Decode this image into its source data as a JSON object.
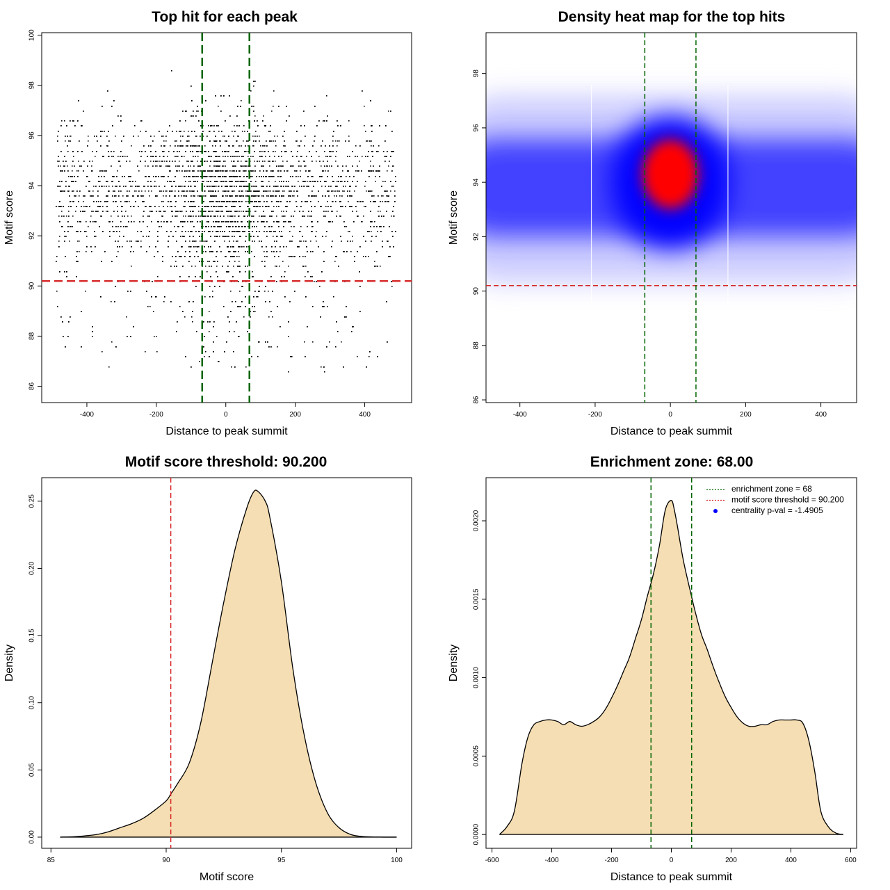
{
  "chart_data": [
    {
      "id": "scatter",
      "type": "scatter",
      "title": "Top hit for each peak",
      "xlabel": "Distance to peak summit",
      "ylabel": "Motif score",
      "xlim": [
        -530,
        535
      ],
      "ylim": [
        85.35,
        100.1
      ],
      "xticks": [
        -400,
        -200,
        0,
        200,
        400
      ],
      "yticks": [
        86,
        88,
        90,
        92,
        94,
        96,
        98,
        100
      ],
      "points_description_values": {
        "x_range": [
          -490,
          490
        ],
        "y_range": [
          86.6,
          99.5
        ],
        "y_mode": 93.8,
        "center_x": 0
      },
      "threshold_line": 90.2,
      "zone_lines": [
        -68,
        68
      ],
      "grid": false,
      "threshold_color": "#d62728",
      "zone_color": "#006400"
    },
    {
      "id": "heatmap",
      "type": "heatmap",
      "title": "Density heat map for the top hits",
      "xlabel": "Distance to peak summit",
      "ylabel": "Motif score",
      "xlim": [
        -490,
        495
      ],
      "ylim": [
        85.9,
        99.5
      ],
      "xticks": [
        -400,
        -200,
        0,
        200,
        400
      ],
      "yticks": [
        86,
        88,
        90,
        92,
        94,
        96,
        98
      ],
      "hotspot": {
        "x": 0,
        "y": 94.3
      },
      "threshold_line": 90.2,
      "zone_lines": [
        -68,
        68
      ],
      "low_color": "#ffffff",
      "mid_color": "#0000ff",
      "high_color": "#ff0000"
    },
    {
      "id": "score_density",
      "type": "area",
      "title": "Motif score threshold: 90.200",
      "xlabel": "Motif score",
      "ylabel": "Density",
      "xlim": [
        84.6,
        100.65
      ],
      "ylim": [
        -0.0083,
        0.2675
      ],
      "xticks": [
        85,
        90,
        95,
        100
      ],
      "yticks": [
        0.0,
        0.05,
        0.1,
        0.15,
        0.2,
        0.25
      ],
      "ytick_labels": [
        "0.00",
        "0.05",
        "0.10",
        "0.15",
        "0.20",
        "0.25"
      ],
      "x": [
        85.4,
        86.0,
        86.5,
        87.0,
        87.5,
        88.0,
        88.5,
        89.0,
        89.5,
        90.0,
        90.2,
        90.5,
        91.0,
        91.5,
        92.0,
        92.5,
        93.0,
        93.5,
        93.8,
        94.0,
        94.3,
        94.5,
        95.0,
        95.5,
        96.0,
        96.5,
        97.0,
        97.5,
        98.0,
        98.5,
        99.0,
        99.5,
        100.0
      ],
      "y": [
        0.0,
        0.0003,
        0.001,
        0.002,
        0.004,
        0.007,
        0.01,
        0.014,
        0.02,
        0.027,
        0.032,
        0.04,
        0.055,
        0.085,
        0.13,
        0.175,
        0.215,
        0.245,
        0.257,
        0.257,
        0.25,
        0.238,
        0.19,
        0.125,
        0.075,
        0.04,
        0.018,
        0.007,
        0.002,
        0.0005,
        0.0001,
        0.0,
        0.0
      ],
      "threshold_line": 90.2,
      "fill_color": "#f5deb3",
      "line_color": "#000000",
      "threshold_color": "#d62728"
    },
    {
      "id": "distance_density",
      "type": "area",
      "title": "Enrichment zone: 68.00",
      "xlabel": "Distance to peak summit",
      "ylabel": "Density",
      "xlim": [
        -620,
        620
      ],
      "ylim": [
        -8.8e-05,
        0.002275
      ],
      "xticks": [
        -600,
        -400,
        -200,
        0,
        200,
        400,
        600
      ],
      "yticks": [
        0.0,
        0.0005,
        0.001,
        0.0015,
        0.002
      ],
      "ytick_labels": [
        "0.0000",
        "0.0005",
        "0.0010",
        "0.0015",
        "0.0020"
      ],
      "x": [
        -575,
        -550,
        -525,
        -500,
        -480,
        -460,
        -440,
        -420,
        -400,
        -380,
        -360,
        -340,
        -320,
        -300,
        -280,
        -260,
        -240,
        -220,
        -200,
        -180,
        -160,
        -140,
        -120,
        -100,
        -80,
        -60,
        -40,
        -20,
        0,
        10,
        20,
        40,
        60,
        80,
        100,
        120,
        140,
        160,
        180,
        200,
        220,
        240,
        260,
        280,
        300,
        320,
        340,
        360,
        380,
        400,
        420,
        440,
        460,
        480,
        500,
        525,
        550,
        575
      ],
      "y": [
        0.0,
        5e-05,
        0.00015,
        0.00045,
        0.00062,
        0.0007,
        0.00072,
        0.00073,
        0.00073,
        0.00072,
        0.0007,
        0.00072,
        0.0007,
        0.00069,
        0.0007,
        0.00072,
        0.00075,
        0.0008,
        0.00087,
        0.00095,
        0.00104,
        0.00113,
        0.00125,
        0.00137,
        0.00152,
        0.00166,
        0.00184,
        0.00207,
        0.00213,
        0.00207,
        0.00197,
        0.00175,
        0.00158,
        0.00142,
        0.00128,
        0.00118,
        0.00107,
        0.00097,
        0.00088,
        0.00081,
        0.00075,
        0.00071,
        0.00069,
        0.00069,
        0.0007,
        0.0007,
        0.00072,
        0.00073,
        0.00073,
        0.00073,
        0.00073,
        0.00071,
        0.0006,
        0.0004,
        0.00015,
        5e-05,
        1e-05,
        0.0
      ],
      "zone_lines": [
        -68,
        68
      ],
      "legend_position": "top-right",
      "legend": [
        {
          "label": "enrichment zone = 68",
          "style": "dotted-line",
          "color": "#006400"
        },
        {
          "label": "motif score threshold = 90.200",
          "style": "dotted-line",
          "color": "#d62728"
        },
        {
          "label": "centrality p-val = -1.4905",
          "style": "point",
          "color": "#0000ff"
        }
      ],
      "fill_color": "#f5deb3",
      "line_color": "#000000",
      "zone_color": "#006400"
    }
  ]
}
